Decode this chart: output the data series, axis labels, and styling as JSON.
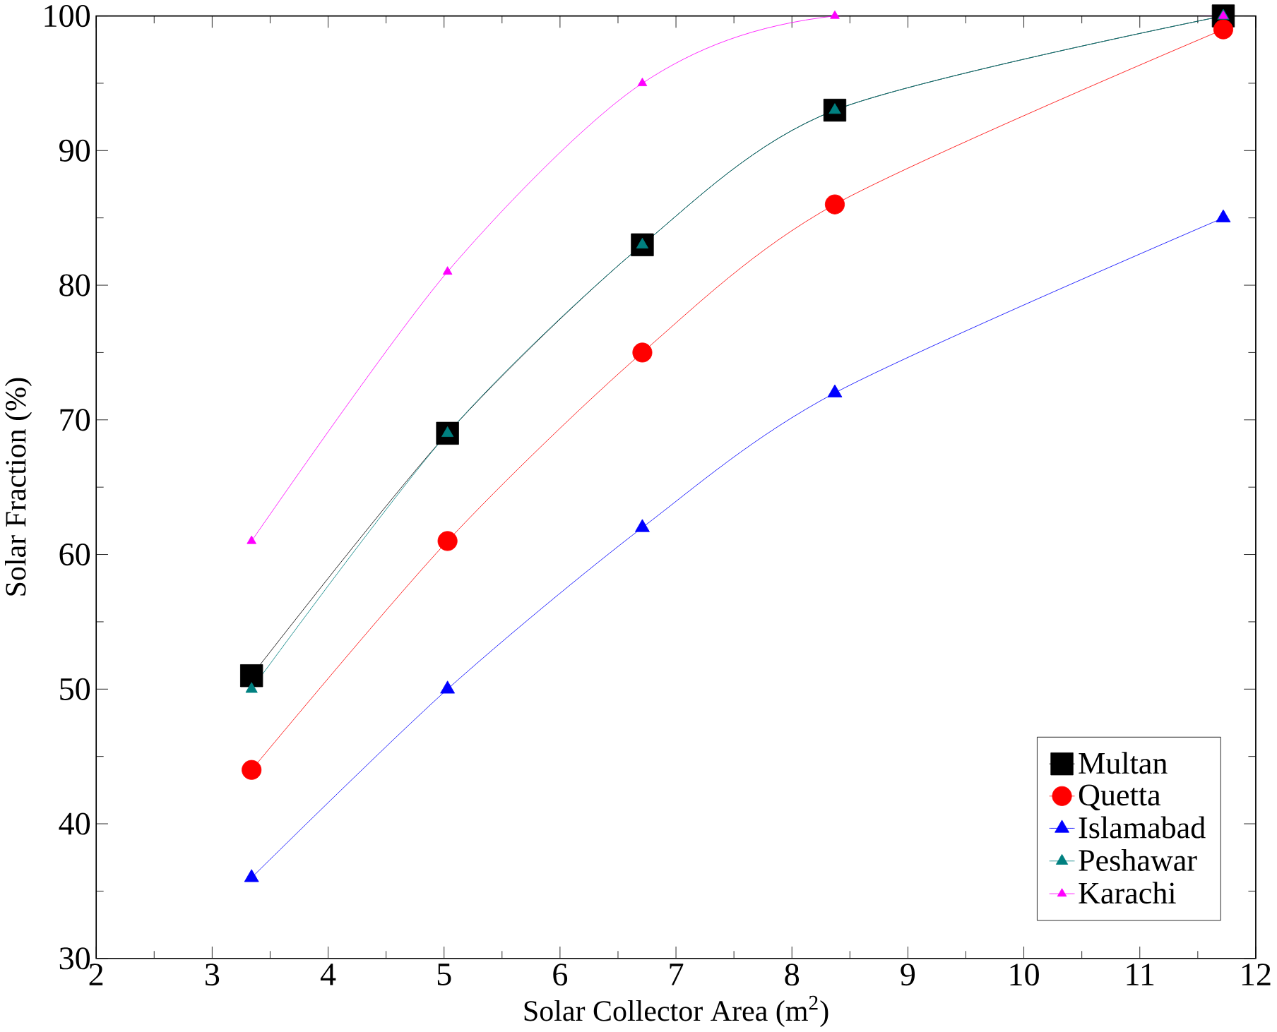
{
  "chart_data": {
    "type": "line",
    "xlabel": "Solar Collector Area (m$^{2}$)",
    "ylabel": "Solar Fraction (%)",
    "x": [
      3.34,
      5.03,
      6.71,
      8.37,
      11.72
    ],
    "series": [
      {
        "name": "Multan",
        "color": "#000000",
        "marker": "square",
        "values": [
          51,
          69,
          83,
          93,
          100
        ]
      },
      {
        "name": "Quetta",
        "color": "#ff0000",
        "marker": "circle",
        "values": [
          44,
          61,
          75,
          86,
          99
        ]
      },
      {
        "name": "Islamabad",
        "color": "#0000ff",
        "marker": "triangle",
        "values": [
          36,
          50,
          62,
          72,
          85
        ]
      },
      {
        "name": "Peshawar",
        "color": "#008080",
        "marker": "triangle",
        "values": [
          50,
          69,
          83,
          93,
          100
        ]
      },
      {
        "name": "Karachi",
        "color": "#ff00ff",
        "marker": "triangle",
        "values": [
          61,
          81,
          95,
          100,
          100
        ]
      }
    ],
    "xlim": [
      2,
      12
    ],
    "xticks": [
      2,
      3,
      4,
      5,
      6,
      7,
      8,
      9,
      10,
      11,
      12
    ],
    "ylim": [
      30,
      100
    ],
    "yticks": [
      30,
      40,
      50,
      60,
      70,
      80,
      90,
      100
    ],
    "grid": false,
    "legend": "bottom right",
    "line_style": "solid"
  }
}
